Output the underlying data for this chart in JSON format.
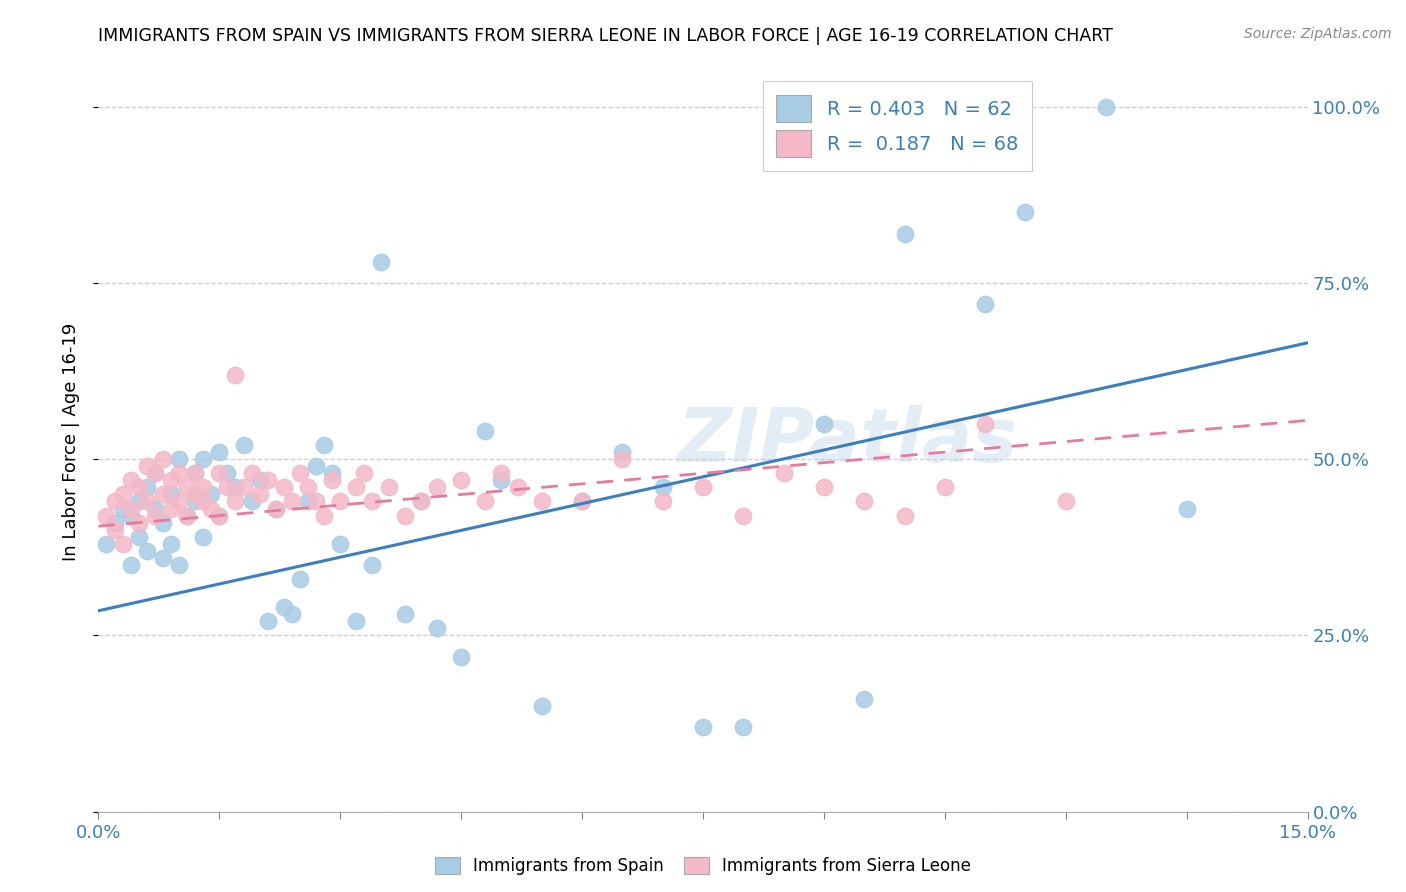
{
  "title": "IMMIGRANTS FROM SPAIN VS IMMIGRANTS FROM SIERRA LEONE IN LABOR FORCE | AGE 16-19 CORRELATION CHART",
  "source": "Source: ZipAtlas.com",
  "ylabel_label": "In Labor Force | Age 16-19",
  "legend_label1": "Immigrants from Spain",
  "legend_label2": "Immigrants from Sierra Leone",
  "R1": "0.403",
  "N1": "62",
  "R2": "0.187",
  "N2": "68",
  "color_spain": "#a8cce4",
  "color_sierra": "#f4b8c8",
  "color_spain_line": "#3a7fbf",
  "color_sierra_line": "#e87aa0",
  "watermark": "ZIPatlas",
  "spain_x": [
    0.001,
    0.002,
    0.003,
    0.004,
    0.004,
    0.005,
    0.005,
    0.006,
    0.006,
    0.007,
    0.007,
    0.008,
    0.008,
    0.009,
    0.009,
    0.01,
    0.01,
    0.011,
    0.012,
    0.012,
    0.013,
    0.013,
    0.014,
    0.015,
    0.015,
    0.016,
    0.017,
    0.018,
    0.019,
    0.02,
    0.021,
    0.022,
    0.023,
    0.024,
    0.025,
    0.026,
    0.027,
    0.028,
    0.029,
    0.03,
    0.032,
    0.034,
    0.035,
    0.038,
    0.04,
    0.042,
    0.045,
    0.048,
    0.05,
    0.055,
    0.06,
    0.065,
    0.07,
    0.075,
    0.08,
    0.09,
    0.095,
    0.1,
    0.11,
    0.115,
    0.125,
    0.135
  ],
  "spain_y": [
    0.38,
    0.41,
    0.43,
    0.42,
    0.35,
    0.44,
    0.39,
    0.46,
    0.37,
    0.48,
    0.43,
    0.41,
    0.36,
    0.45,
    0.38,
    0.5,
    0.35,
    0.42,
    0.48,
    0.44,
    0.5,
    0.39,
    0.45,
    0.51,
    0.42,
    0.48,
    0.46,
    0.52,
    0.44,
    0.47,
    0.27,
    0.43,
    0.29,
    0.28,
    0.33,
    0.44,
    0.49,
    0.52,
    0.48,
    0.38,
    0.27,
    0.35,
    0.78,
    0.28,
    0.44,
    0.26,
    0.22,
    0.54,
    0.47,
    0.15,
    0.44,
    0.51,
    0.46,
    0.12,
    0.12,
    0.55,
    0.16,
    0.82,
    0.72,
    0.85,
    1.0,
    0.43
  ],
  "sierra_x": [
    0.001,
    0.002,
    0.002,
    0.003,
    0.003,
    0.004,
    0.004,
    0.005,
    0.005,
    0.006,
    0.006,
    0.007,
    0.007,
    0.008,
    0.008,
    0.009,
    0.009,
    0.01,
    0.01,
    0.011,
    0.011,
    0.012,
    0.012,
    0.013,
    0.013,
    0.014,
    0.015,
    0.015,
    0.016,
    0.017,
    0.017,
    0.018,
    0.019,
    0.02,
    0.021,
    0.022,
    0.023,
    0.024,
    0.025,
    0.026,
    0.027,
    0.028,
    0.029,
    0.03,
    0.032,
    0.033,
    0.034,
    0.036,
    0.038,
    0.04,
    0.042,
    0.045,
    0.048,
    0.05,
    0.052,
    0.055,
    0.06,
    0.065,
    0.07,
    0.075,
    0.08,
    0.085,
    0.09,
    0.095,
    0.1,
    0.105,
    0.11,
    0.12
  ],
  "sierra_y": [
    0.42,
    0.4,
    0.44,
    0.45,
    0.38,
    0.43,
    0.47,
    0.41,
    0.46,
    0.44,
    0.49,
    0.42,
    0.48,
    0.45,
    0.5,
    0.43,
    0.47,
    0.44,
    0.48,
    0.46,
    0.42,
    0.45,
    0.48,
    0.44,
    0.46,
    0.43,
    0.48,
    0.42,
    0.46,
    0.44,
    0.62,
    0.46,
    0.48,
    0.45,
    0.47,
    0.43,
    0.46,
    0.44,
    0.48,
    0.46,
    0.44,
    0.42,
    0.47,
    0.44,
    0.46,
    0.48,
    0.44,
    0.46,
    0.42,
    0.44,
    0.46,
    0.47,
    0.44,
    0.48,
    0.46,
    0.44,
    0.44,
    0.5,
    0.44,
    0.46,
    0.42,
    0.48,
    0.46,
    0.44,
    0.42,
    0.46,
    0.55,
    0.44
  ],
  "spain_line_x": [
    0.0,
    0.15
  ],
  "spain_line_y": [
    0.285,
    0.665
  ],
  "sierra_line_x": [
    0.0,
    0.15
  ],
  "sierra_line_y": [
    0.405,
    0.555
  ],
  "xlim": [
    0.0,
    0.15
  ],
  "ylim": [
    0.0,
    1.05
  ],
  "yticks": [
    0.0,
    0.25,
    0.5,
    0.75,
    1.0
  ],
  "ytick_labels": [
    "0.0%",
    "25.0%",
    "50.0%",
    "75.0%",
    "100.0%"
  ],
  "xtick_labels_left": "0.0%",
  "xtick_labels_right": "15.0%"
}
